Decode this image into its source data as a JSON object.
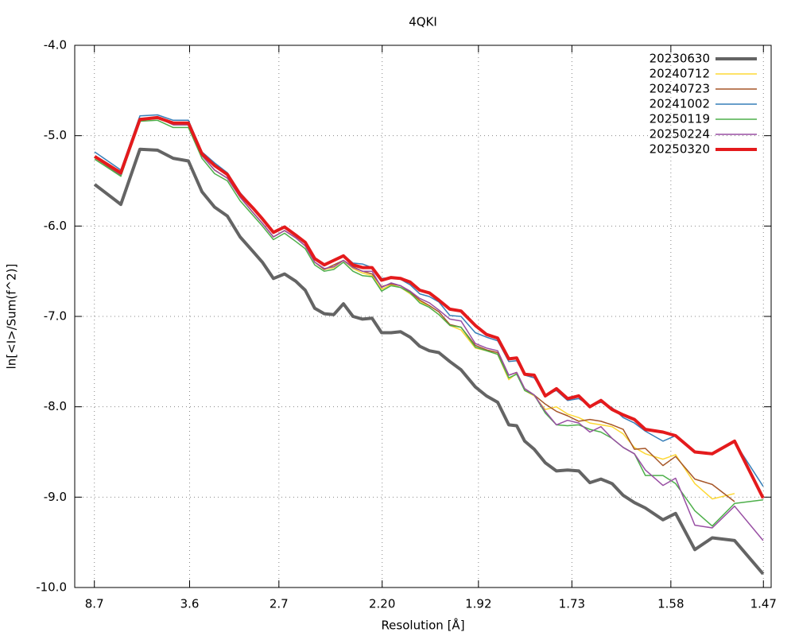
{
  "chart_data": {
    "type": "line",
    "title": "4QKI",
    "xlabel": "Resolution [Å]",
    "ylabel": "ln[<I>/Sum(f^2)]",
    "x": [
      0.0134,
      0.031,
      0.0438,
      0.0556,
      0.0662,
      0.0764,
      0.0855,
      0.094,
      0.1026,
      0.1111,
      0.1197,
      0.1261,
      0.1335,
      0.141,
      0.1485,
      0.1549,
      0.1613,
      0.1677,
      0.1741,
      0.1806,
      0.187,
      0.1934,
      0.1998,
      0.2062,
      0.2126,
      0.219,
      0.2254,
      0.2318,
      0.2383,
      0.2447,
      0.2521,
      0.2596,
      0.2692,
      0.2767,
      0.2842,
      0.2917,
      0.297,
      0.3024,
      0.3088,
      0.3162,
      0.3237,
      0.3312,
      0.3387,
      0.3462,
      0.3536,
      0.3611,
      0.3686,
      0.3761,
      0.3835,
      0.3953,
      0.4038,
      0.4167,
      0.4284,
      0.4434,
      0.4626
    ],
    "series": [
      {
        "name": "20230630",
        "color": "#646464",
        "width": 4,
        "values": [
          -5.54,
          -5.76,
          -5.15,
          -5.16,
          -5.25,
          -5.28,
          -5.62,
          -5.79,
          -5.89,
          -6.12,
          -6.28,
          -6.4,
          -6.58,
          -6.53,
          -6.61,
          -6.71,
          -6.91,
          -6.97,
          -6.98,
          -6.86,
          -7.0,
          -7.03,
          -7.02,
          -7.18,
          -7.18,
          -7.17,
          -7.23,
          -7.33,
          -7.38,
          -7.4,
          -7.5,
          -7.59,
          -7.78,
          -7.88,
          -7.95,
          -8.2,
          -8.21,
          -8.38,
          -8.47,
          -8.62,
          -8.71,
          -8.7,
          -8.71,
          -8.84,
          -8.8,
          -8.85,
          -8.98,
          -9.06,
          -9.12,
          -9.25,
          -9.18,
          -9.58,
          -9.45,
          -9.48,
          -9.85
        ]
      },
      {
        "name": "20240712",
        "color": "#fdd835",
        "width": 1.5,
        "values": [
          -5.24,
          -5.44,
          -4.81,
          -4.8,
          -4.88,
          -4.88,
          -5.22,
          -5.38,
          -5.47,
          -5.68,
          -5.85,
          -5.97,
          -6.12,
          -6.05,
          -6.13,
          -6.22,
          -6.4,
          -6.48,
          -6.46,
          -6.38,
          -6.47,
          -6.52,
          -6.55,
          -6.7,
          -6.65,
          -6.68,
          -6.75,
          -6.83,
          -6.9,
          -6.98,
          -7.1,
          -7.15,
          -7.35,
          -7.38,
          -7.42,
          -7.7,
          -7.63,
          -7.82,
          -7.88,
          -8.03,
          -8.0,
          -8.08,
          -8.12,
          -8.18,
          -8.2,
          -8.22,
          -8.3,
          -8.45,
          -8.52,
          -8.58,
          -8.53,
          -8.85,
          -9.02,
          -8.96,
          null
        ]
      },
      {
        "name": "20240723",
        "color": "#a65628",
        "width": 1.5,
        "values": [
          -5.24,
          -5.44,
          -4.81,
          -4.8,
          -4.88,
          -4.88,
          -5.22,
          -5.38,
          -5.47,
          -5.68,
          -5.85,
          -5.97,
          -6.12,
          -6.05,
          -6.13,
          -6.22,
          -6.4,
          -6.48,
          -6.43,
          -6.38,
          -6.45,
          -6.5,
          -6.53,
          -6.67,
          -6.64,
          -6.66,
          -6.73,
          -6.82,
          -6.88,
          -6.95,
          -7.09,
          -7.12,
          -7.32,
          -7.37,
          -7.4,
          -7.65,
          -7.62,
          -7.8,
          -7.87,
          -7.97,
          -8.05,
          -8.1,
          -8.16,
          -8.14,
          -8.16,
          -8.2,
          -8.25,
          -8.47,
          -8.46,
          -8.65,
          -8.55,
          -8.8,
          -8.86,
          -9.05,
          null
        ]
      },
      {
        "name": "20241002",
        "color": "#377eb8",
        "width": 1.5,
        "values": [
          -5.18,
          -5.38,
          -4.78,
          -4.77,
          -4.83,
          -4.83,
          -5.18,
          -5.3,
          -5.41,
          -5.63,
          -5.79,
          -5.92,
          -6.06,
          -6.0,
          -6.09,
          -6.18,
          -6.35,
          -6.42,
          -6.37,
          -6.32,
          -6.41,
          -6.42,
          -6.46,
          -6.58,
          -6.57,
          -6.59,
          -6.65,
          -6.75,
          -6.78,
          -6.84,
          -6.99,
          -7.0,
          -7.18,
          -7.23,
          -7.27,
          -7.5,
          -7.49,
          -7.65,
          -7.68,
          -7.87,
          -7.82,
          -7.93,
          -7.91,
          -7.99,
          -7.95,
          -8.01,
          -8.12,
          -8.18,
          -8.27,
          -8.38,
          -8.32,
          -8.5,
          -8.53,
          -8.39,
          -8.88
        ]
      },
      {
        "name": "20250119",
        "color": "#4daf4a",
        "width": 1.5,
        "values": [
          -5.26,
          -5.45,
          -4.84,
          -4.83,
          -4.91,
          -4.91,
          -5.25,
          -5.42,
          -5.5,
          -5.72,
          -5.88,
          -6.0,
          -6.15,
          -6.08,
          -6.17,
          -6.25,
          -6.43,
          -6.5,
          -6.48,
          -6.4,
          -6.5,
          -6.55,
          -6.56,
          -6.72,
          -6.66,
          -6.68,
          -6.74,
          -6.85,
          -6.9,
          -6.98,
          -7.1,
          -7.12,
          -7.34,
          -7.38,
          -7.42,
          -7.68,
          -7.64,
          -7.82,
          -7.87,
          -8.07,
          -8.2,
          -8.21,
          -8.2,
          -8.25,
          -8.28,
          -8.35,
          -8.45,
          -8.52,
          -8.76,
          -8.76,
          -8.85,
          -9.15,
          -9.32,
          -9.07,
          -9.03
        ]
      },
      {
        "name": "20250224",
        "color": "#984ea3",
        "width": 1.5,
        "values": [
          -5.24,
          -5.43,
          -4.81,
          -4.8,
          -4.88,
          -4.88,
          -5.22,
          -5.38,
          -5.47,
          -5.68,
          -5.85,
          -5.97,
          -6.12,
          -6.05,
          -6.13,
          -6.22,
          -6.4,
          -6.47,
          -6.45,
          -6.38,
          -6.46,
          -6.5,
          -6.5,
          -6.68,
          -6.63,
          -6.66,
          -6.72,
          -6.8,
          -6.85,
          -6.93,
          -7.03,
          -7.05,
          -7.3,
          -7.35,
          -7.38,
          -7.65,
          -7.62,
          -7.8,
          -7.87,
          -8.05,
          -8.2,
          -8.15,
          -8.18,
          -8.28,
          -8.22,
          -8.35,
          -8.45,
          -8.52,
          -8.7,
          -8.87,
          -8.79,
          -9.31,
          -9.34,
          -9.1,
          -9.48
        ]
      },
      {
        "name": "20250320",
        "color": "#e41a1c",
        "width": 4,
        "values": [
          -5.23,
          -5.41,
          -4.82,
          -4.8,
          -4.86,
          -4.86,
          -5.2,
          -5.33,
          -5.43,
          -5.65,
          -5.8,
          -5.92,
          -6.07,
          -6.01,
          -6.1,
          -6.18,
          -6.36,
          -6.43,
          -6.38,
          -6.33,
          -6.43,
          -6.46,
          -6.46,
          -6.6,
          -6.57,
          -6.58,
          -6.62,
          -6.71,
          -6.74,
          -6.82,
          -6.92,
          -6.94,
          -7.1,
          -7.2,
          -7.24,
          -7.47,
          -7.46,
          -7.64,
          -7.65,
          -7.88,
          -7.8,
          -7.91,
          -7.88,
          -8.0,
          -7.93,
          -8.03,
          -8.09,
          -8.14,
          -8.25,
          -8.28,
          -8.32,
          -8.5,
          -8.52,
          -8.38,
          -9.01
        ]
      }
    ],
    "xlim": [
      0,
      0.468
    ],
    "xticks": [
      {
        "value": 0.0132,
        "label": "8.7"
      },
      {
        "value": 0.0772,
        "label": "3.6"
      },
      {
        "value": 0.1372,
        "label": "2.7"
      },
      {
        "value": 0.2066,
        "label": "2.20"
      },
      {
        "value": 0.2713,
        "label": "1.92"
      },
      {
        "value": 0.3341,
        "label": "1.73"
      },
      {
        "value": 0.4006,
        "label": "1.58"
      },
      {
        "value": 0.4628,
        "label": "1.47"
      }
    ],
    "ylim": [
      -10,
      -4
    ],
    "yticks": [
      {
        "value": -10,
        "label": "-10.0"
      },
      {
        "value": -9,
        "label": "-9.0"
      },
      {
        "value": -8,
        "label": "-8.0"
      },
      {
        "value": -7,
        "label": "-7.0"
      },
      {
        "value": -6,
        "label": "-6.0"
      },
      {
        "value": -5,
        "label": "-5.0"
      },
      {
        "value": -4,
        "label": "-4.0"
      }
    ],
    "grid": true,
    "legend": "top right"
  }
}
